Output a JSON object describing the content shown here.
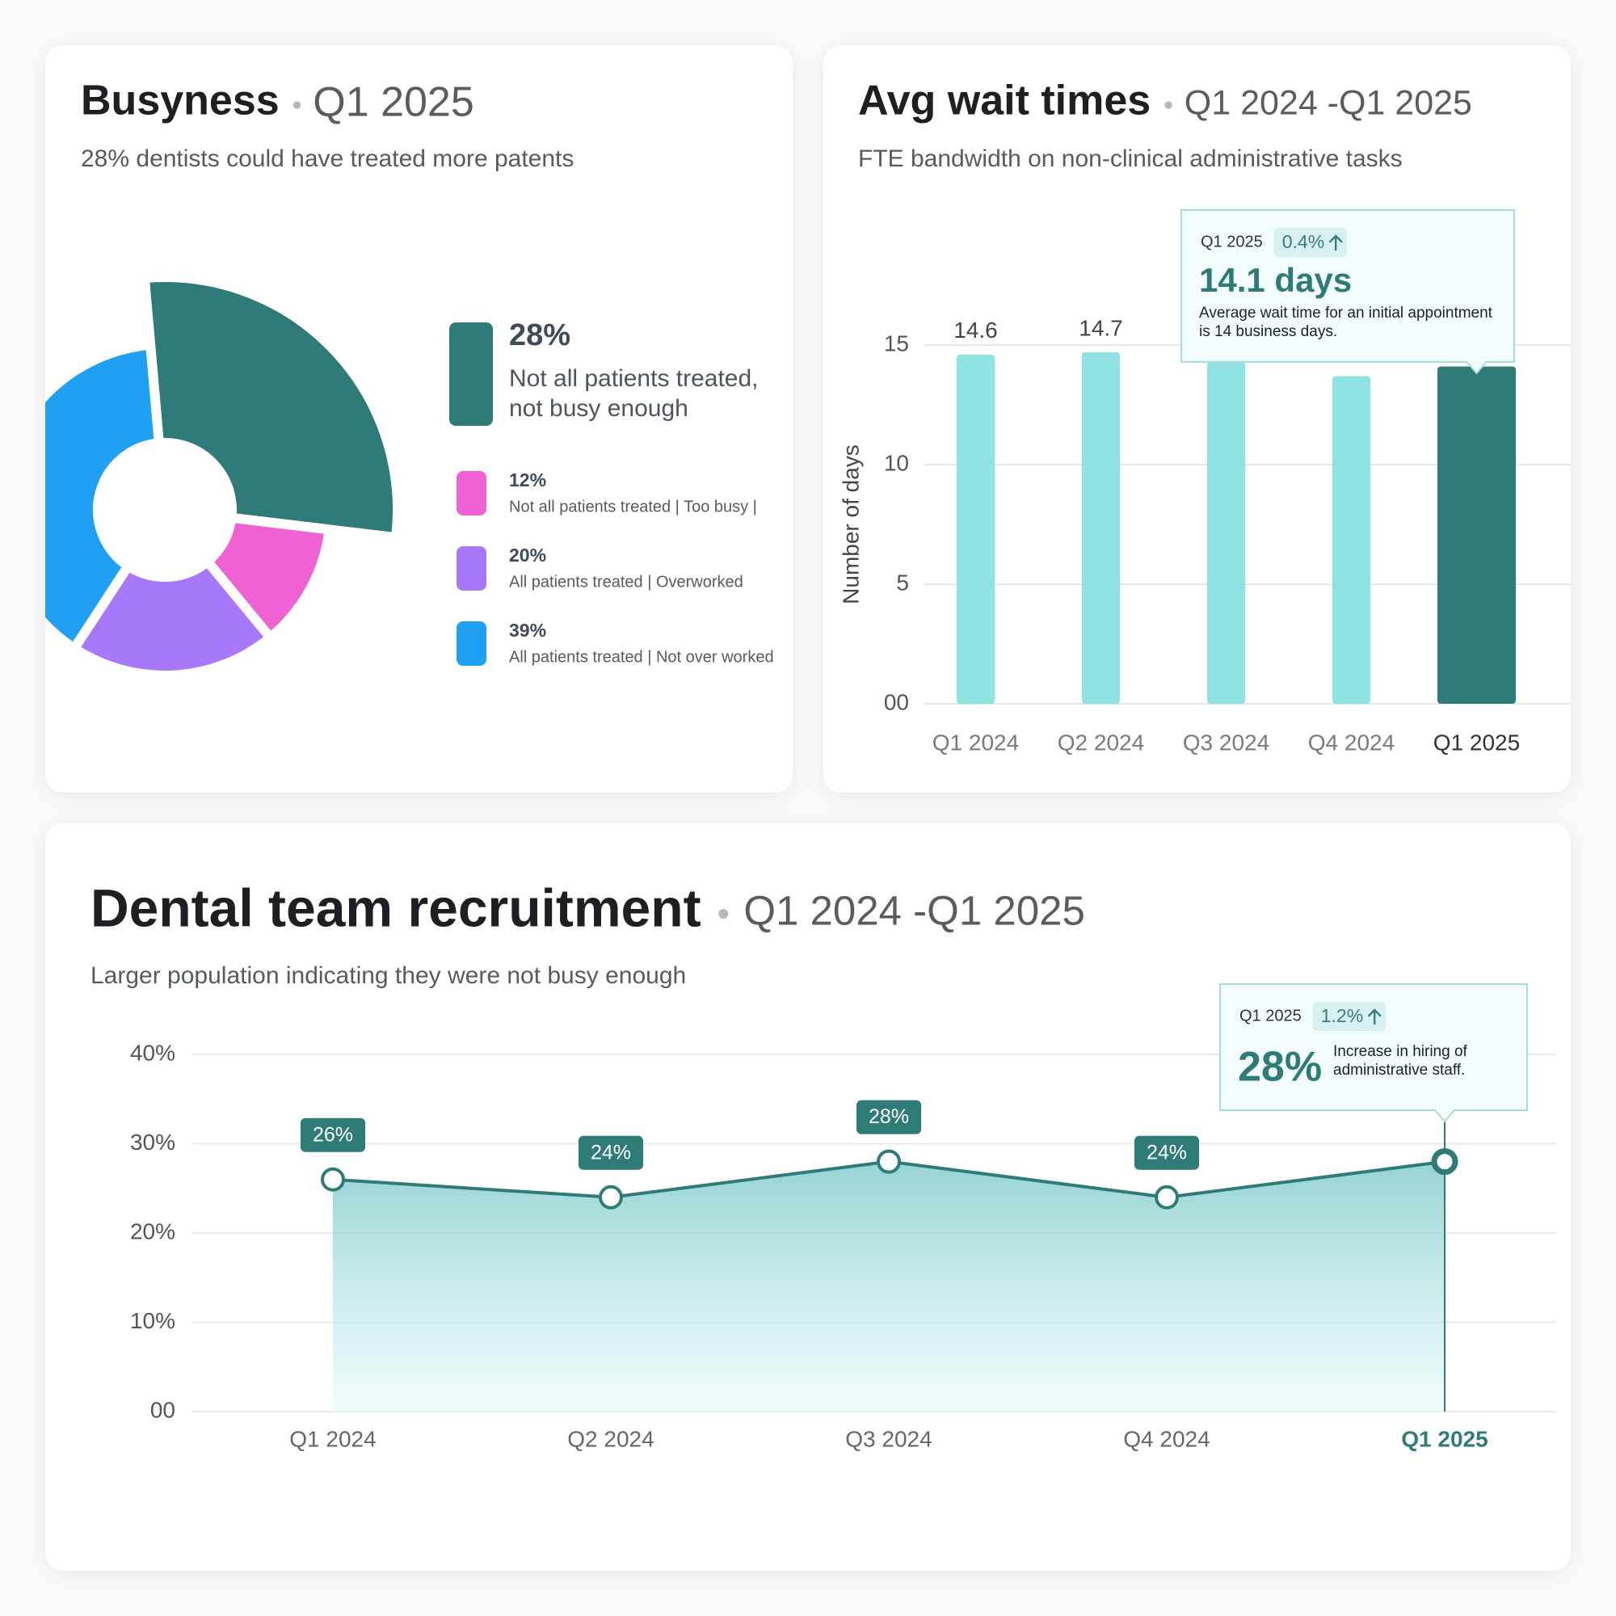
{
  "chart_data": [
    {
      "type": "pie",
      "title": "Busyness",
      "subtitle": "Q1 2025",
      "description": "28% dentists could have treated more patents",
      "categories": [
        "Not all patients treated, not busy enough",
        "Not all patients treated | Too busy |",
        "All patients treated | Overworked",
        "All patients treated | Not over worked"
      ],
      "values": [
        28,
        12,
        20,
        39
      ],
      "value_labels": [
        "28%",
        "12%",
        "20%",
        "39%"
      ],
      "colors": [
        "#2e7b78",
        "#f062d3",
        "#a878fb",
        "#20a0f2"
      ],
      "highlight": 0
    },
    {
      "type": "bar",
      "title": "Avg wait times",
      "subtitle": "Q1 2024 -Q1 2025",
      "description": "FTE bandwidth on non-clinical administrative tasks",
      "y_label": "Number of days",
      "categories": [
        "Q1 2024",
        "Q2 2024",
        "Q3 2024",
        "Q4 2024",
        "Q1 2025"
      ],
      "values": [
        14.6,
        14.7,
        14.3,
        13.7,
        14.1
      ],
      "colors": [
        "#8ee3e2",
        "#8ee3e2",
        "#8ee3e2",
        "#8ee3e2",
        "#2e7b78"
      ],
      "ylim": [
        0,
        15
      ],
      "yticks": [
        {
          "value": 0,
          "label": "00"
        },
        5,
        10,
        15
      ],
      "grid": true,
      "highlight": 4,
      "tooltip": {
        "period": "Q1 2025",
        "change": "0.4%",
        "headline": "14.1 days",
        "text": "Average wait time for an initial appointment is 14 business days."
      }
    },
    {
      "type": "area",
      "title": "Dental team recruitment",
      "subtitle": "Q1 2024 -Q1 2025",
      "description": "Larger population indicating they were not busy enough",
      "categories": [
        "Q1 2024",
        "Q2 2024",
        "Q3 2024",
        "Q4 2024",
        "Q1 2025"
      ],
      "values": [
        26,
        24,
        28,
        24,
        28
      ],
      "value_labels": [
        "26%",
        "24%",
        "28%",
        "24%",
        null
      ],
      "color": "#2e7b78",
      "ylim": [
        0,
        40
      ],
      "yticks": [
        {
          "value": 0,
          "label": "00"
        },
        {
          "value": 10,
          "label": "10%"
        },
        {
          "value": 20,
          "label": "20%"
        },
        {
          "value": 30,
          "label": "30%"
        },
        {
          "value": 40,
          "label": "40%"
        }
      ],
      "grid": true,
      "highlight": 4,
      "tooltip": {
        "period": "Q1 2025",
        "change": "1.2%",
        "headline": "28%",
        "text": "Increase in hiring of administrative staff."
      }
    }
  ]
}
